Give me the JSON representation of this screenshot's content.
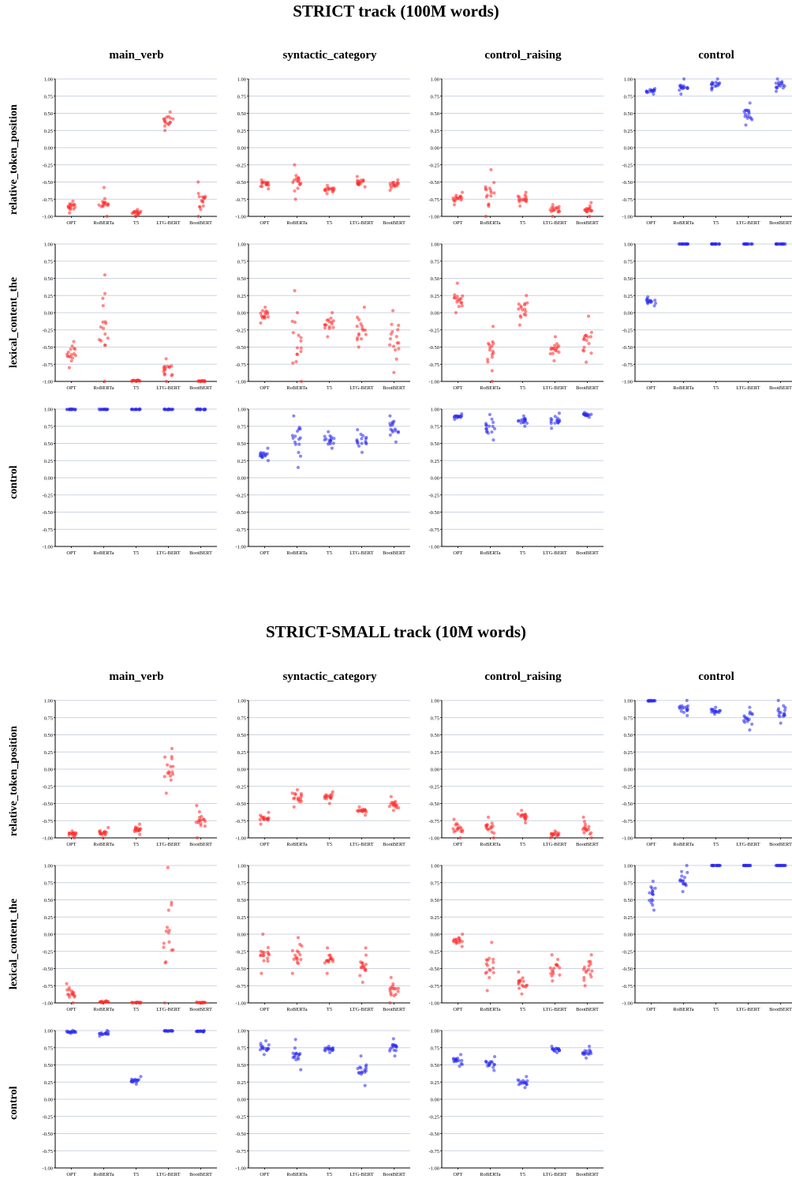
{
  "colors": {
    "metric": "#ff2a2a",
    "control": "#2a2aee",
    "grid": "#ccd3e0"
  },
  "chart_data": [
    {
      "title": "STRICT track (100M words)",
      "type": "scatter",
      "columns": [
        "main_verb",
        "syntactic_category",
        "control_raising",
        "control"
      ],
      "rows": [
        "relative_token_position",
        "lexical_content_the",
        "control"
      ],
      "categories": [
        "OPT",
        "RoBERTa",
        "T5",
        "LTG-BERT",
        "BootBERT"
      ],
      "ylim": [
        -1,
        1
      ],
      "yticks": [
        "1.00",
        "0.75",
        "0.50",
        "0.25",
        "0.00",
        "-0.25",
        "-0.50",
        "-0.75",
        "-1.00"
      ],
      "panels": [
        [
          {
            "color": "metric",
            "values": [
              [
                -0.78,
                -0.95
              ],
              [
                -0.58,
                -1.0
              ],
              [
                -0.9,
                -1.0
              ],
              [
                0.25,
                0.52
              ],
              [
                -0.5,
                -1.0
              ]
            ]
          },
          {
            "color": "metric",
            "values": [
              [
                -0.47,
                -0.6
              ],
              [
                -0.25,
                -0.75
              ],
              [
                -0.55,
                -0.67
              ],
              [
                -0.42,
                -0.57
              ],
              [
                -0.47,
                -0.62
              ]
            ]
          },
          {
            "color": "metric",
            "values": [
              [
                -0.65,
                -0.83
              ],
              [
                -0.32,
                -1.0
              ],
              [
                -0.65,
                -0.85
              ],
              [
                -0.83,
                -1.0
              ],
              [
                -0.8,
                -1.0
              ]
            ]
          },
          {
            "color": "control",
            "values": [
              [
                0.78,
                0.86
              ],
              [
                0.78,
                1.0
              ],
              [
                0.84,
                1.0
              ],
              [
                0.33,
                0.65
              ],
              [
                0.82,
                1.0
              ]
            ]
          }
        ],
        [
          {
            "color": "metric",
            "values": [
              [
                -0.42,
                -0.8
              ],
              [
                0.55,
                -1.0
              ],
              [
                -0.98,
                -1.0
              ],
              [
                -0.67,
                -1.0
              ],
              [
                -0.99,
                -1.0
              ]
            ]
          },
          {
            "color": "metric",
            "values": [
              [
                0.08,
                -0.15
              ],
              [
                0.32,
                -1.0
              ],
              [
                0.0,
                -0.35
              ],
              [
                0.08,
                -0.5
              ],
              [
                0.03,
                -0.87
              ]
            ]
          },
          {
            "color": "metric",
            "values": [
              [
                0.43,
                0.0
              ],
              [
                -0.2,
                -1.0
              ],
              [
                0.25,
                -0.18
              ],
              [
                -0.35,
                -0.7
              ],
              [
                -0.05,
                -0.72
              ]
            ]
          },
          {
            "color": "control",
            "values": [
              [
                0.1,
                0.23
              ],
              [
                1.0,
                1.0
              ],
              [
                1.0,
                1.0
              ],
              [
                1.0,
                1.0
              ],
              [
                1.0,
                1.0
              ]
            ]
          }
        ],
        [
          {
            "color": "control",
            "values": [
              [
                0.99,
                1.0
              ],
              [
                0.99,
                1.0
              ],
              [
                0.99,
                1.0
              ],
              [
                0.99,
                1.0
              ],
              [
                0.99,
                1.0
              ]
            ]
          },
          {
            "color": "control",
            "values": [
              [
                0.25,
                0.43
              ],
              [
                0.15,
                0.9
              ],
              [
                0.43,
                0.67
              ],
              [
                0.37,
                0.7
              ],
              [
                0.52,
                0.9
              ]
            ]
          },
          {
            "color": "control",
            "values": [
              [
                0.85,
                0.93
              ],
              [
                0.55,
                0.92
              ],
              [
                0.75,
                0.9
              ],
              [
                0.72,
                0.94
              ],
              [
                0.88,
                0.95
              ]
            ]
          },
          null
        ]
      ]
    },
    {
      "title": "STRICT-SMALL track (10M words)",
      "type": "scatter",
      "columns": [
        "main_verb",
        "syntactic_category",
        "control_raising",
        "control"
      ],
      "rows": [
        "relative_token_position",
        "lexical_content_the",
        "control"
      ],
      "categories": [
        "OPT",
        "RoBERTa",
        "T5",
        "LTG-BERT",
        "BootBERT"
      ],
      "ylim": [
        -1,
        1
      ],
      "yticks": [
        "1.00",
        "0.75",
        "0.50",
        "0.25",
        "0.00",
        "-0.25",
        "-0.50",
        "-0.75",
        "-1.00"
      ],
      "panels": [
        [
          {
            "color": "metric",
            "values": [
              [
                -0.9,
                -1.0
              ],
              [
                -0.85,
                -1.0
              ],
              [
                -0.8,
                -0.95
              ],
              [
                -0.35,
                0.3
              ],
              [
                -0.53,
                -1.0
              ]
            ]
          },
          {
            "color": "metric",
            "values": [
              [
                -0.63,
                -0.8
              ],
              [
                -0.3,
                -0.55
              ],
              [
                -0.33,
                -0.5
              ],
              [
                -0.55,
                -0.67
              ],
              [
                -0.4,
                -0.6
              ]
            ]
          },
          {
            "color": "metric",
            "values": [
              [
                -0.73,
                -1.0
              ],
              [
                -0.7,
                -1.0
              ],
              [
                -0.6,
                -0.78
              ],
              [
                -0.9,
                -1.0
              ],
              [
                -0.7,
                -1.0
              ]
            ]
          },
          {
            "color": "control",
            "values": [
              [
                0.99,
                1.0
              ],
              [
                0.78,
                1.0
              ],
              [
                0.8,
                0.9
              ],
              [
                0.57,
                0.9
              ],
              [
                0.67,
                1.0
              ]
            ]
          }
        ],
        [
          {
            "color": "metric",
            "values": [
              [
                -0.72,
                -1.0
              ],
              [
                -0.97,
                -1.0
              ],
              [
                -0.99,
                -1.0
              ],
              [
                0.97,
                -1.0
              ],
              [
                -0.99,
                -1.0
              ]
            ]
          },
          {
            "color": "metric",
            "values": [
              [
                0.0,
                -0.57
              ],
              [
                -0.05,
                -0.57
              ],
              [
                -0.2,
                -0.57
              ],
              [
                -0.2,
                -0.7
              ],
              [
                -0.63,
                -1.0
              ]
            ]
          },
          {
            "color": "metric",
            "values": [
              [
                0.0,
                -0.18
              ],
              [
                -0.12,
                -0.82
              ],
              [
                -0.55,
                -0.87
              ],
              [
                -0.3,
                -0.68
              ],
              [
                -0.3,
                -0.75
              ]
            ]
          },
          {
            "color": "control",
            "values": [
              [
                0.35,
                0.77
              ],
              [
                0.62,
                1.0
              ],
              [
                1.0,
                1.0
              ],
              [
                1.0,
                1.0
              ],
              [
                1.0,
                1.0
              ]
            ]
          }
        ],
        [
          {
            "color": "control",
            "values": [
              [
                0.96,
                1.0
              ],
              [
                0.92,
                1.0
              ],
              [
                0.22,
                0.33
              ],
              [
                0.99,
                1.0
              ],
              [
                0.98,
                1.0
              ]
            ]
          },
          {
            "color": "control",
            "values": [
              [
                0.65,
                0.85
              ],
              [
                0.43,
                0.87
              ],
              [
                0.68,
                0.77
              ],
              [
                0.2,
                0.63
              ],
              [
                0.63,
                0.88
              ]
            ]
          },
          {
            "color": "control",
            "values": [
              [
                0.48,
                0.65
              ],
              [
                0.42,
                0.62
              ],
              [
                0.17,
                0.33
              ],
              [
                0.68,
                0.77
              ],
              [
                0.6,
                0.77
              ]
            ]
          },
          null
        ]
      ]
    }
  ]
}
